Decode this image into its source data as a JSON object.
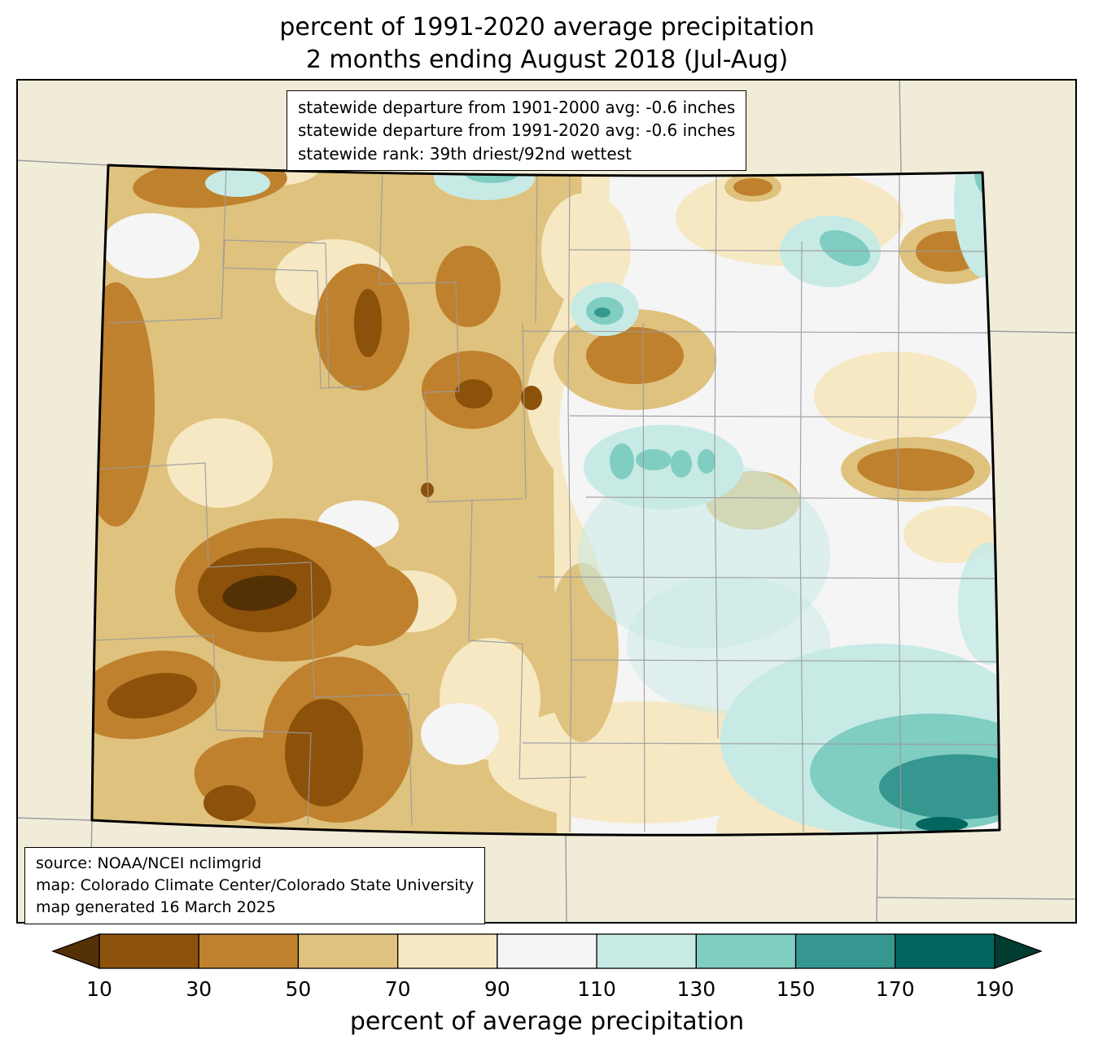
{
  "title": {
    "line1": "percent of 1991-2020 average precipitation",
    "line2": "2 months ending August 2018 (Jul-Aug)"
  },
  "stats_box": {
    "lines": [
      "statewide departure from 1901-2000 avg: -0.6 inches",
      "statewide departure from 1991-2020 avg: -0.6 inches",
      "statewide rank: 39th driest/92nd wettest"
    ]
  },
  "source_box": {
    "lines": [
      "source: NOAA/NCEI nclimgrid",
      "map: Colorado Climate Center/Colorado State University",
      "map generated 16 March 2025"
    ]
  },
  "colorbar": {
    "label": "percent of average precipitation",
    "ticks": [
      "10",
      "30",
      "50",
      "70",
      "90",
      "110",
      "130",
      "150",
      "170",
      "190"
    ],
    "under_color": "#543005",
    "over_color": "#003c30",
    "segment_colors": [
      "#8c510a",
      "#bf812d",
      "#dfc27d",
      "#f6e8c3",
      "#f5f5f5",
      "#c7eae5",
      "#80cdc1",
      "#35978f",
      "#01665e"
    ]
  },
  "map": {
    "background_color": "#f0ecd8",
    "state_border_color": "#000000",
    "county_line_color": "#9a9aa0",
    "dry_colors": [
      "#543005",
      "#8c510a",
      "#bf812d",
      "#dfc27d",
      "#f6e8c3"
    ],
    "near_normal_color": "#f5f5f5",
    "wet_colors": [
      "#c7eae5",
      "#80cdc1",
      "#35978f",
      "#01665e",
      "#003c30"
    ]
  }
}
